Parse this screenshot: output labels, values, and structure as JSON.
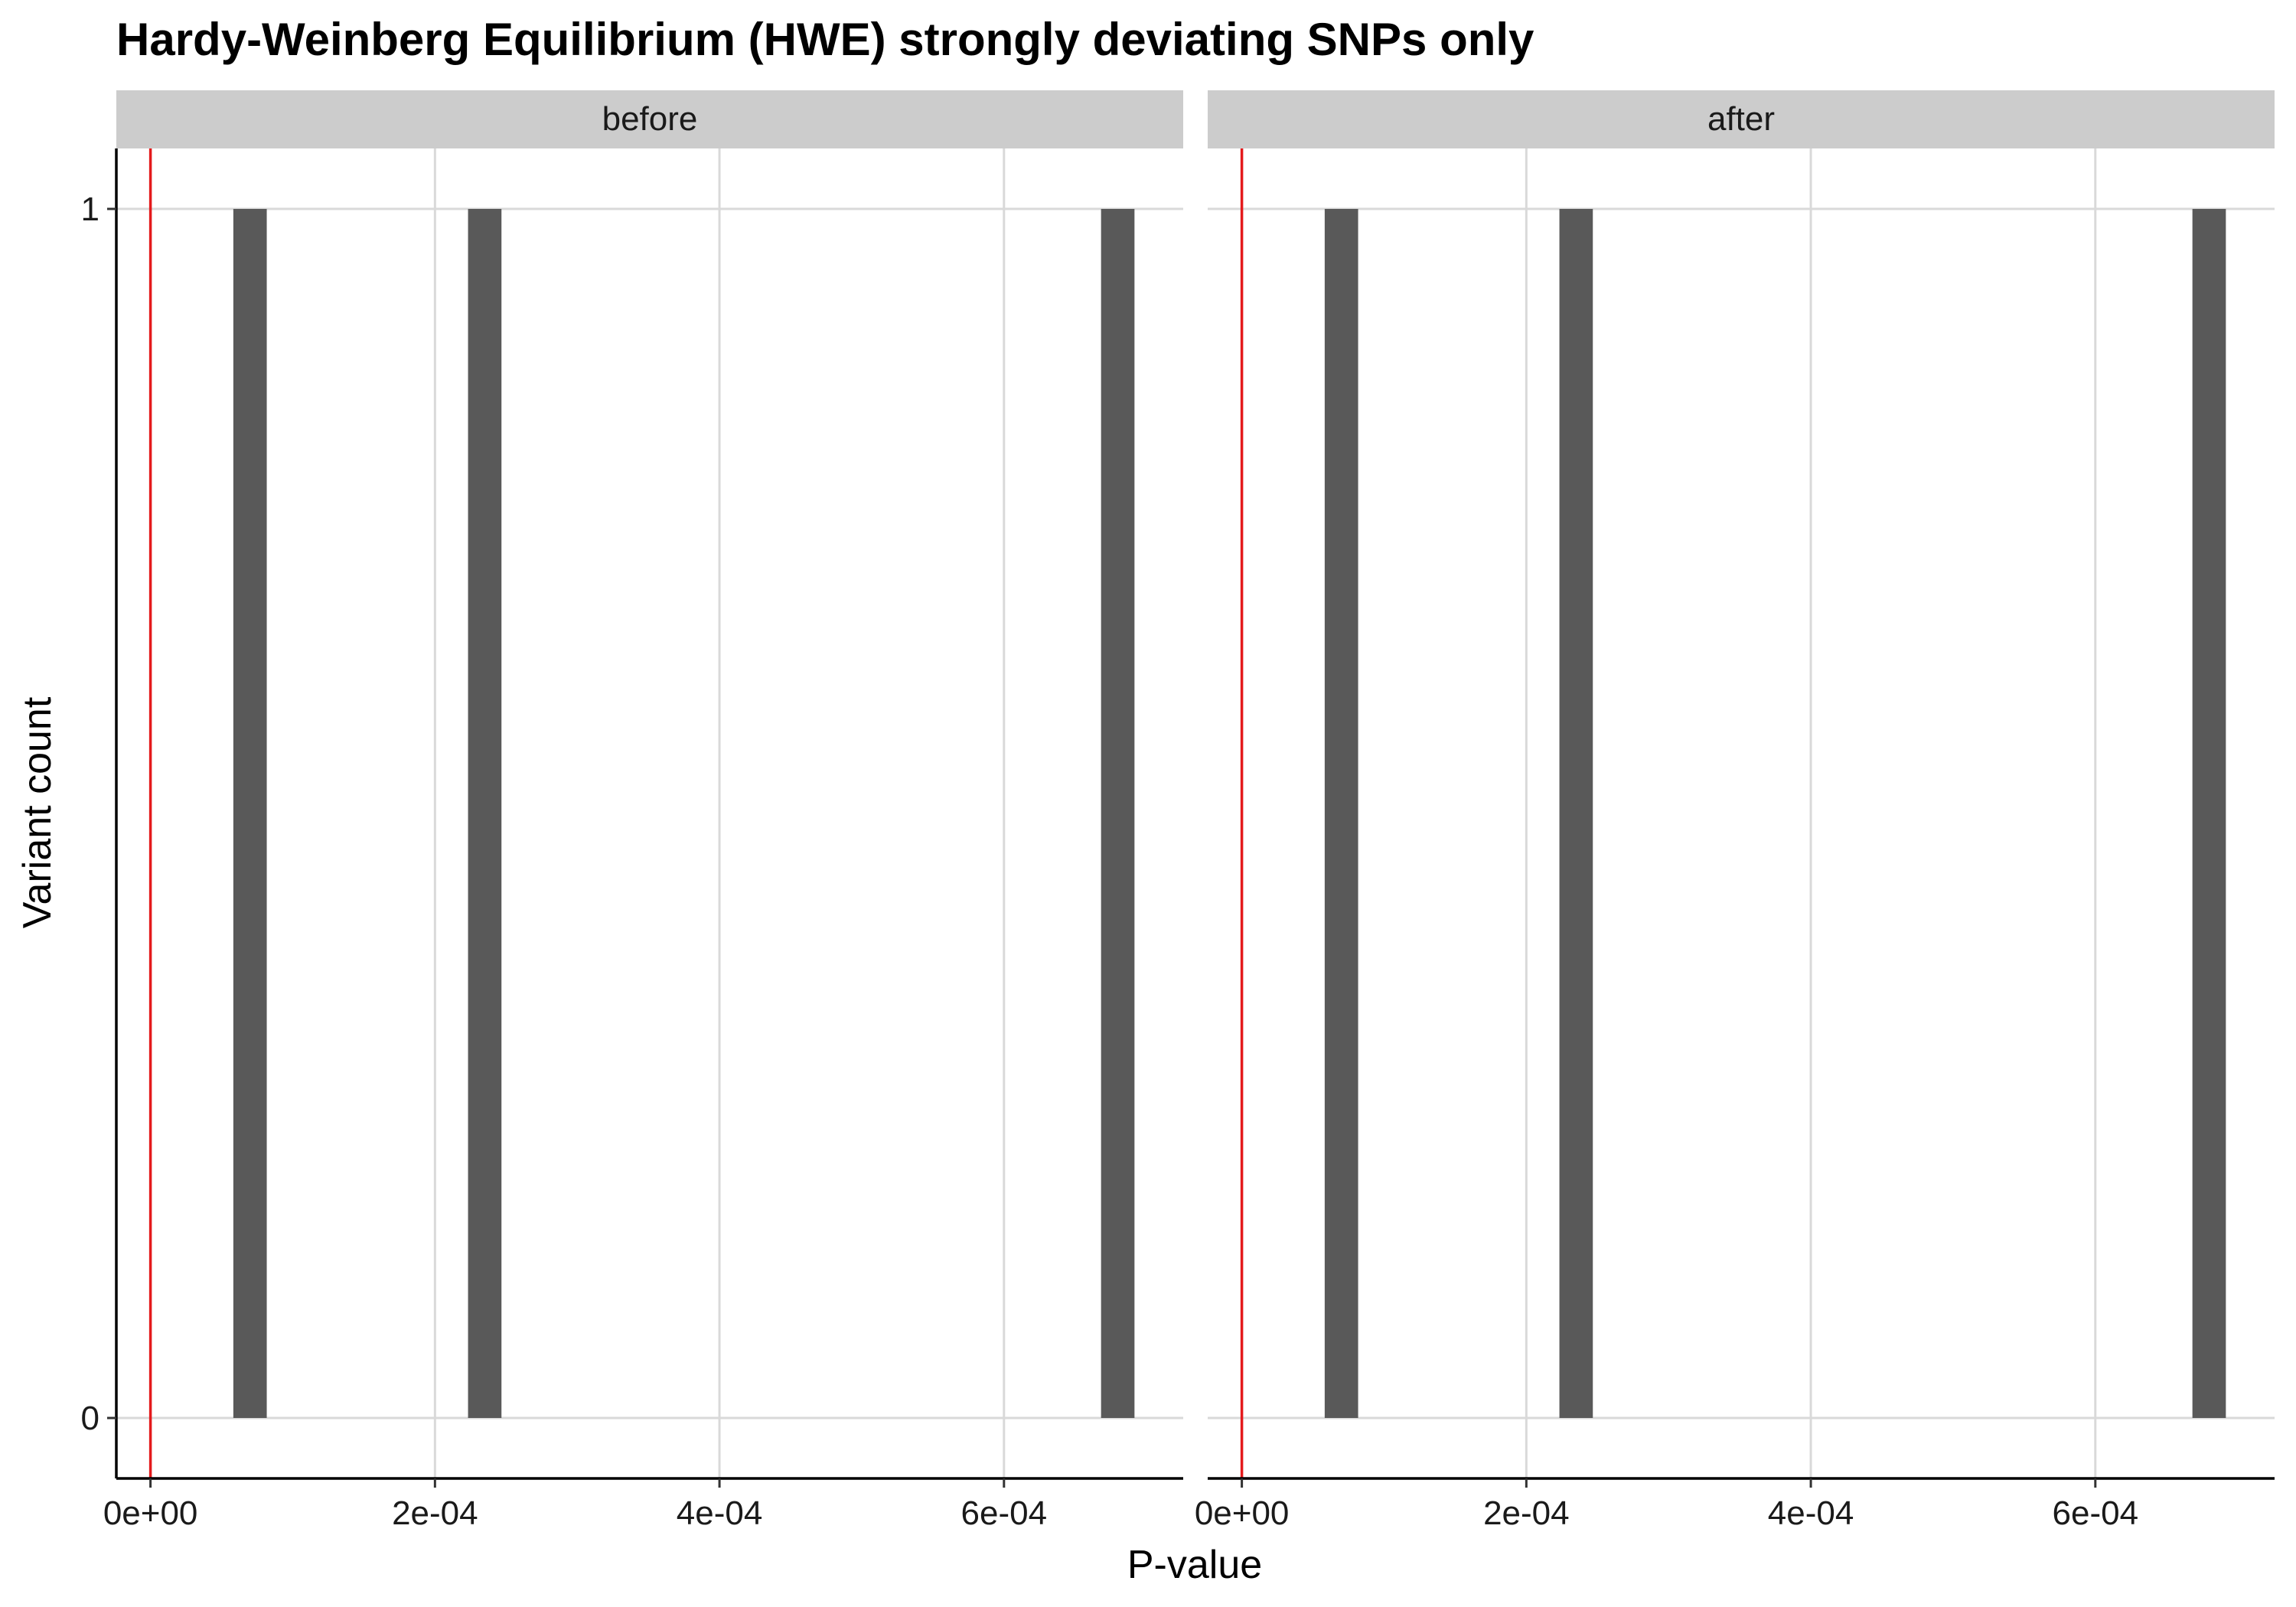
{
  "chart_data": {
    "type": "bar",
    "title": "Hardy-Weinberg Equilibrium (HWE)  strongly deviating SNPs only",
    "xlabel": "P-value",
    "ylabel": "Variant count",
    "xlim": [
      -2.4e-05,
      0.000726
    ],
    "ylim": [
      -0.05,
      1.05
    ],
    "x_ticks": [
      0,
      0.0002,
      0.0004,
      0.0006
    ],
    "x_tick_labels": [
      "0e+00",
      "2e-04",
      "4e-04",
      "6e-04"
    ],
    "y_ticks": [
      0,
      1
    ],
    "y_tick_labels": [
      "0",
      "1"
    ],
    "grid": true,
    "reference_line": {
      "x": 0,
      "color": "#e41a1c"
    },
    "bar_color": "#595959",
    "bin_width": 2.35e-05,
    "facets": [
      {
        "label": "before",
        "bars": [
          {
            "x": 7e-05,
            "count": 1
          },
          {
            "x": 0.000235,
            "count": 1
          },
          {
            "x": 0.00068,
            "count": 1
          }
        ]
      },
      {
        "label": "after",
        "bars": [
          {
            "x": 7e-05,
            "count": 1
          },
          {
            "x": 0.000235,
            "count": 1
          },
          {
            "x": 0.00068,
            "count": 1
          }
        ]
      }
    ]
  }
}
